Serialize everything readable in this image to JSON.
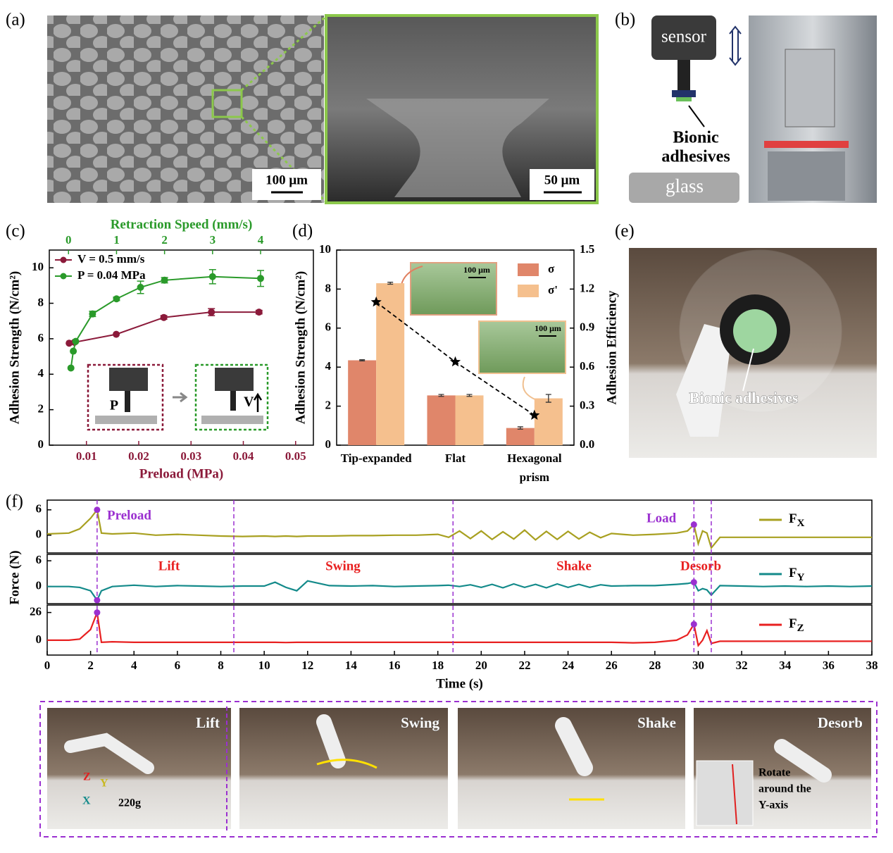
{
  "figure": {
    "panel_labels": [
      "(a)",
      "(b)",
      "(c)",
      "(d)",
      "(e)",
      "(f)"
    ],
    "a": {
      "scale_bars": [
        "100 μm",
        "50 μm"
      ]
    },
    "b": {
      "sensor": "sensor",
      "glass": "glass",
      "adhesive": [
        "Bionic",
        "adhesives"
      ]
    },
    "e": {
      "adhesive": "Bionic adhesives"
    },
    "photos": [
      {
        "label": "Lift"
      },
      {
        "label": "Swing"
      },
      {
        "label": "Shake"
      },
      {
        "label": "Desorb"
      }
    ],
    "lift_annotations": {
      "axes": [
        "Z",
        "Y",
        "X"
      ],
      "mass": "220g"
    },
    "desorb_annotation": [
      "Rotate",
      "around the",
      "Y-axis"
    ]
  },
  "chart_data": [
    {
      "type": "line",
      "ylabel": "Adhesion Strength (N/cm²)",
      "xlabel": "Preload (MPa)",
      "x2label": "Retraction Speed (mm/s)",
      "xlim": [
        0.0029,
        0.0534
      ],
      "xticks": [
        0.01,
        0.02,
        0.03,
        0.04,
        0.05
      ],
      "x2lim": [
        -0.4,
        5.1
      ],
      "x2ticks": [
        0,
        1,
        2,
        3,
        4
      ],
      "ylim": [
        0,
        11
      ],
      "yticks": [
        0,
        2,
        4,
        6,
        8,
        10
      ],
      "series": [
        {
          "name": "V = 0.5 mm/s",
          "color": "#8b1a3a",
          "axis": "x",
          "x": [
            0.0067,
            0.0077,
            0.0157,
            0.0248,
            0.0339,
            0.043
          ],
          "values": [
            5.75,
            5.8,
            6.25,
            7.2,
            7.5,
            7.5
          ],
          "errors": [
            0,
            0,
            0,
            0.1,
            0.2,
            0.1
          ]
        },
        {
          "name": "P = 0.04 MPa",
          "color": "#2a9a2a",
          "axis": "x2",
          "x": [
            0.05,
            0.1,
            0.15,
            0.5,
            1,
            1.5,
            2,
            3,
            4
          ],
          "values": [
            4.35,
            5.3,
            5.85,
            7.4,
            8.25,
            8.9,
            9.3,
            9.5,
            9.4
          ],
          "errors": [
            0,
            0,
            0,
            0.15,
            0.1,
            0.35,
            0.15,
            0.4,
            0.45
          ]
        }
      ],
      "inset_labels": [
        "P",
        "V"
      ]
    },
    {
      "type": "bar",
      "ylabel": "Adhesion Strength (N/cm²)",
      "y2label": "Adhesion Efficiency",
      "categories": [
        "Tip-expanded",
        "Flat",
        "Hexagonal prism"
      ],
      "ylim": [
        0,
        10
      ],
      "yticks": [
        0,
        2,
        4,
        6,
        8,
        10
      ],
      "y2lim": [
        0,
        1.5
      ],
      "y2ticks": [
        {
          "value": 0,
          "label": "0.0"
        },
        0.3,
        0.6,
        0.9,
        1.2,
        1.5
      ],
      "series": [
        {
          "name": "σ",
          "color": "#e0866a",
          "values": [
            4.35,
            2.55,
            0.88
          ],
          "errors": [
            0.03,
            0.05,
            0.06
          ]
        },
        {
          "name": "σ'",
          "color": "#f5c08e",
          "values": [
            8.3,
            2.55,
            2.4
          ],
          "errors": [
            0.05,
            0.05,
            0.2
          ]
        },
        {
          "type": "line",
          "axis": "y2",
          "color": "#000000",
          "values": [
            1.1,
            0.64,
            0.23
          ]
        }
      ],
      "inset_scale_bars": [
        "100 μm",
        "100 μm"
      ]
    },
    {
      "type": "line",
      "xlabel": "Time (s)",
      "ylabel": "Force (N)",
      "x": [
        0,
        1,
        1.5,
        2,
        2.3,
        2.5,
        3,
        4,
        5,
        6,
        7,
        8,
        9,
        10,
        10.5,
        11,
        11.5,
        12,
        13,
        14,
        15,
        16,
        17,
        18,
        18.5,
        19,
        19.5,
        20,
        20.5,
        21,
        21.5,
        22,
        22.5,
        23,
        23.5,
        24,
        24.5,
        25,
        25.5,
        26,
        27,
        28,
        29,
        29.5,
        29.8,
        30,
        30.2,
        30.4,
        30.6,
        31,
        32,
        33,
        34,
        35,
        36,
        37,
        38
      ],
      "xlim": [
        0,
        38
      ],
      "xticks": [
        0,
        2,
        4,
        6,
        8,
        10,
        12,
        14,
        16,
        18,
        20,
        22,
        24,
        26,
        28,
        30,
        32,
        34,
        36,
        38
      ],
      "vlines": [
        2.3,
        8.6,
        18.7,
        29.8,
        30.6
      ],
      "markers": [
        2.3,
        29.8
      ],
      "marker_color": "#9b30d0",
      "annotations": {
        "purple": [
          "Preload",
          "Load"
        ],
        "red": [
          "Lift",
          "Swing",
          "Shake",
          "Desorb"
        ]
      },
      "panels": [
        {
          "ylim": [
            -4.2,
            8.3
          ],
          "yticks": [
            0,
            6
          ],
          "series": [
            {
              "name": "FX",
              "color": "#a8a020",
              "values": [
                0.3,
                0.5,
                1.5,
                4,
                6,
                0.5,
                0.3,
                0.5,
                0,
                0.2,
                0,
                -0.2,
                -0.3,
                -0.2,
                -0.3,
                -0.2,
                -0.3,
                -0.2,
                -0.2,
                -0.1,
                -0.1,
                0,
                0,
                0.2,
                -0.5,
                1,
                -0.8,
                1,
                -1,
                0.8,
                -0.9,
                1.2,
                -1.1,
                0.9,
                -1,
                0.9,
                -0.9,
                0.7,
                -0.6,
                0.4,
                0,
                0.2,
                0.5,
                1,
                2.5,
                -2,
                1,
                0.5,
                -3,
                -0.5,
                -0.5,
                -0.5,
                -0.5,
                -0.5,
                -0.5,
                -0.5,
                -0.5
              ]
            }
          ]
        },
        {
          "ylim": [
            -4,
            7.5
          ],
          "yticks": [
            0,
            6
          ],
          "series": [
            {
              "name": "FY",
              "color": "#138a8a",
              "values": [
                0,
                0,
                -0.2,
                -1,
                -3.2,
                -1,
                0,
                0.3,
                0,
                0.2,
                0.1,
                0,
                0.1,
                0.1,
                1,
                -0.2,
                -1,
                1.3,
                0.2,
                0.1,
                0.2,
                0,
                0.1,
                0.2,
                0.3,
                0,
                0.4,
                -0.2,
                0.5,
                -0.3,
                0.6,
                -0.2,
                0.5,
                -0.3,
                0.6,
                -0.2,
                0.5,
                -0.2,
                0.4,
                0.1,
                0.2,
                0.2,
                0.5,
                0.7,
                1,
                -1,
                -0.5,
                -0.8,
                -2,
                0.2,
                0.1,
                0,
                0.1,
                0,
                0.1,
                0,
                0.1
              ]
            }
          ]
        },
        {
          "ylim": [
            -14,
            33
          ],
          "yticks": [
            0,
            26
          ],
          "series": [
            {
              "name": "FZ",
              "color": "#e82020",
              "values": [
                0,
                0,
                1,
                10,
                26,
                -2,
                -1.5,
                -2,
                -2,
                -2,
                -2,
                -2,
                -2,
                -2,
                -2,
                -2.2,
                -2,
                -2,
                -2,
                -2,
                -2,
                -2,
                -2,
                -2,
                -2,
                -2,
                -2,
                -2,
                -2,
                -2,
                -2,
                -2,
                -2,
                -2,
                -2,
                -2,
                -2,
                -2,
                -2,
                -2,
                -2.5,
                -2,
                0,
                5,
                15,
                -5,
                0,
                9,
                -3,
                -1,
                -1,
                -1,
                -1,
                -1,
                -1,
                -1,
                -1
              ]
            }
          ]
        }
      ]
    }
  ]
}
